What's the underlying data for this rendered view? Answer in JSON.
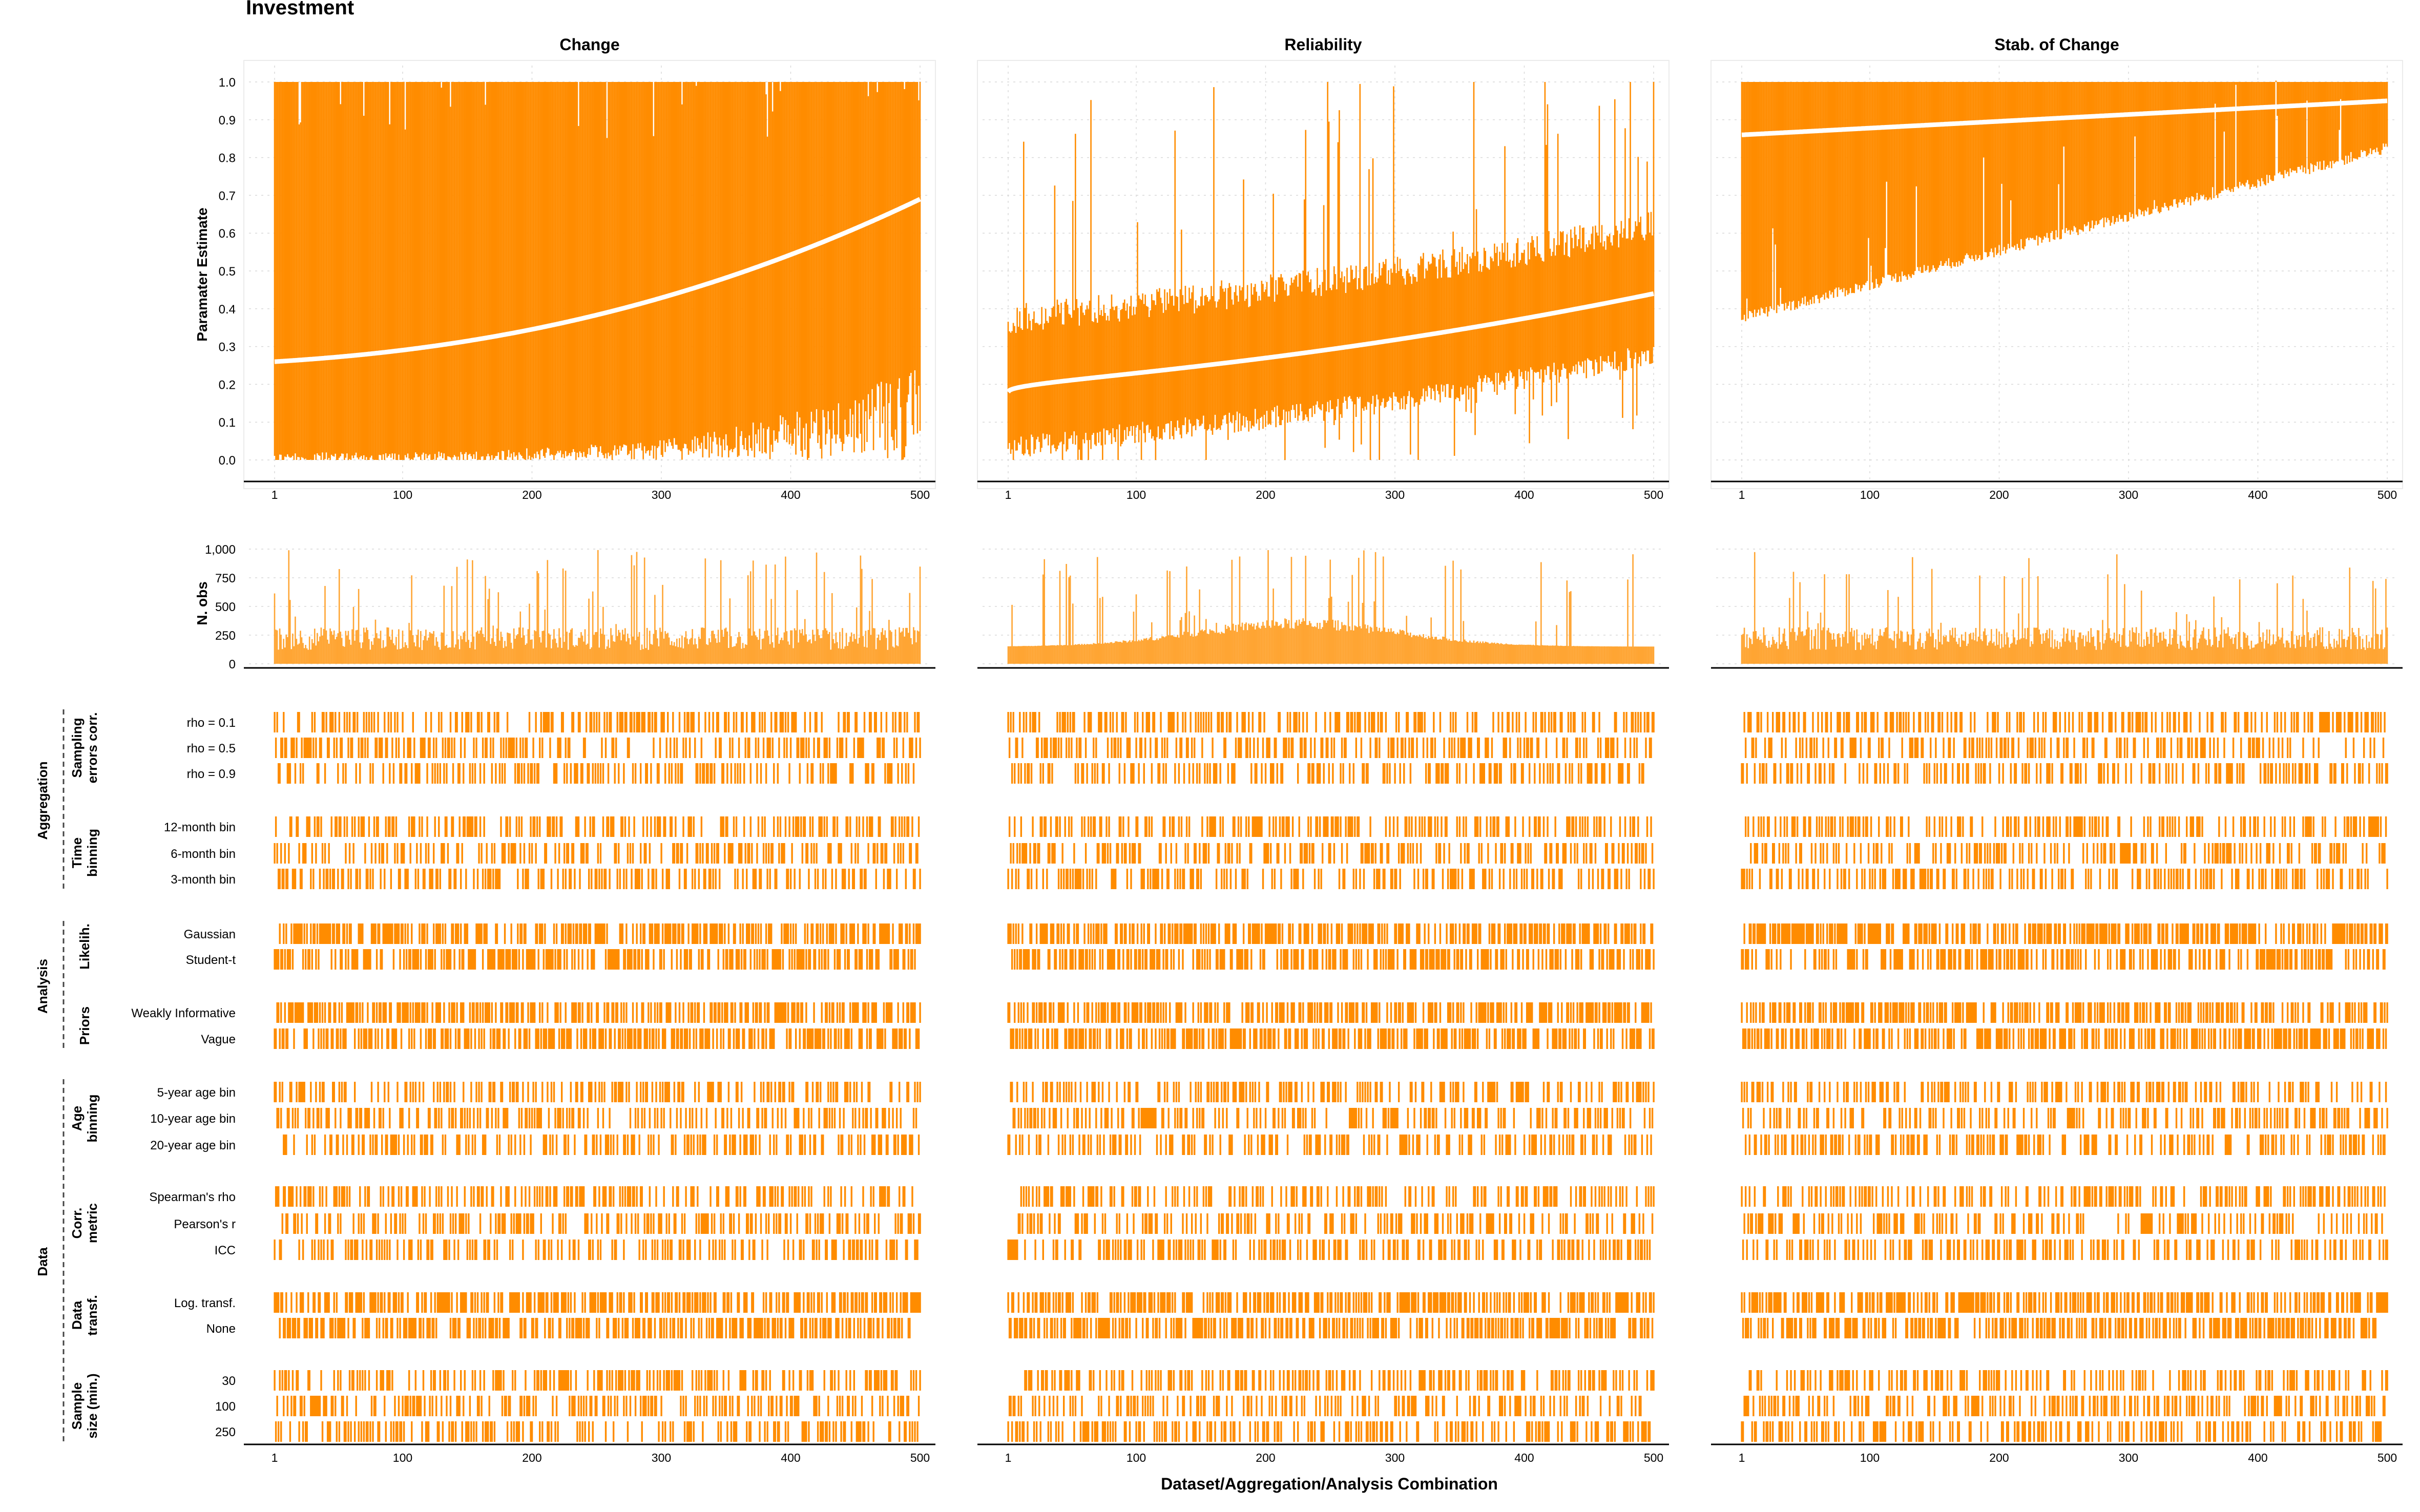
{
  "figure": {
    "title": "Investment",
    "xlabel": "Dataset/Aggregation/Analysis Combination",
    "colors": {
      "accent": "#ff8c00",
      "nobs_fill": "#ffa533",
      "median_line": "#ffffff",
      "axis": "#000000",
      "grid": "#d9d9d9",
      "panel_border": "#ebebeb"
    }
  },
  "chart_data": {
    "type": "multiverse-specification-curve",
    "panels": [
      {
        "title": "Change",
        "median_start": 0.26,
        "median_end": 0.69
      },
      {
        "title": "Reliability",
        "median_start": 0.18,
        "median_end": 0.44
      },
      {
        "title": "Stab. of Change",
        "median_start": 0.86,
        "median_end": 0.95
      }
    ],
    "x_range": [
      1,
      500
    ],
    "x_ticks": [
      "1",
      "100",
      "200",
      "300",
      "400",
      "500"
    ],
    "estimate": {
      "ylabel": "Paramater Estimate",
      "ylim": [
        0,
        1
      ],
      "y_ticks": [
        "0.0",
        "0.1",
        "0.2",
        "0.3",
        "0.4",
        "0.5",
        "0.6",
        "0.7",
        "0.8",
        "0.9",
        "1.0"
      ]
    },
    "nobs": {
      "ylabel": "N. obs",
      "ylim": [
        0,
        1000
      ],
      "y_ticks": [
        "0",
        "250",
        "500",
        "750",
        "1,000"
      ]
    },
    "spec_groups": [
      {
        "section": "Aggregation",
        "name_lines": [
          "Sampling",
          "errors corr."
        ],
        "levels": [
          "rho = 0.1",
          "rho = 0.5",
          "rho = 0.9"
        ]
      },
      {
        "section": "Aggregation",
        "name_lines": [
          "Time",
          "binning"
        ],
        "levels": [
          "12-month bin",
          "6-month bin",
          "3-month bin"
        ]
      },
      {
        "section": "Analysis",
        "name_lines": [
          "Likelih."
        ],
        "levels": [
          "Gaussian",
          "Student-t"
        ]
      },
      {
        "section": "Analysis",
        "name_lines": [
          "Priors"
        ],
        "levels": [
          "Weakly Informative",
          "Vague"
        ]
      },
      {
        "section": "Data",
        "name_lines": [
          "Age",
          "binning"
        ],
        "levels": [
          "5-year age bin",
          "10-year age bin",
          "20-year age bin"
        ]
      },
      {
        "section": "Data",
        "name_lines": [
          "Corr.",
          "metric"
        ],
        "levels": [
          "Spearman's rho",
          "Pearson's r",
          "ICC"
        ]
      },
      {
        "section": "Data",
        "name_lines": [
          "Data",
          "transf."
        ],
        "levels": [
          "Log. transf.",
          "None"
        ]
      },
      {
        "section": "Data",
        "name_lines": [
          "Sample",
          "size (min.)"
        ],
        "levels": [
          "30",
          "100",
          "250"
        ]
      }
    ],
    "sections": [
      "Aggregation",
      "Analysis",
      "Data"
    ],
    "grid": true
  }
}
